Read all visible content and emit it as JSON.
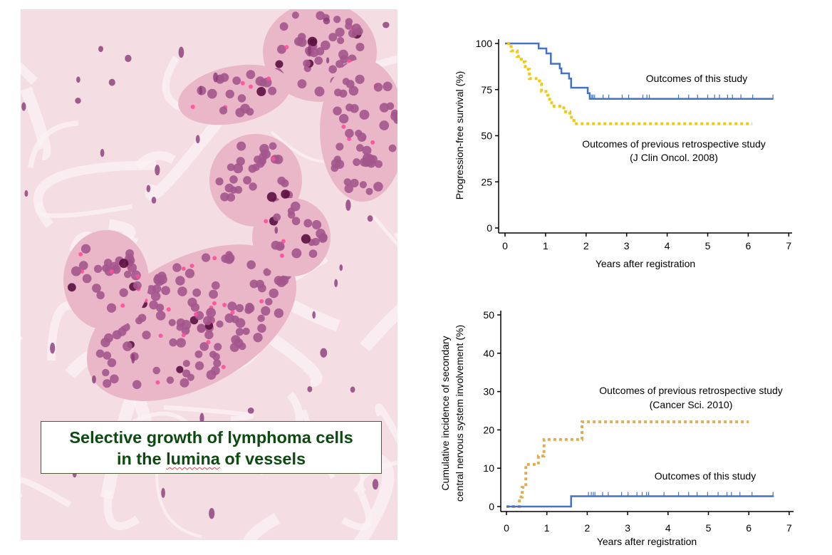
{
  "figure": {
    "caption_line1": "Selective growth of lymphoma cells",
    "caption_line2_pre": "in the ",
    "caption_line2_word": "lumina",
    "caption_line2_post": " of vessels",
    "image": "H&E histology micrograph of lymphoma cells inside vessel lumina"
  },
  "colors": {
    "this_study": "#4472C4",
    "previous_pfs": "#F2C811",
    "previous_cns": "#DFAE52"
  },
  "chart_data": [
    {
      "type": "line",
      "subtype": "kaplan-meier",
      "xlabel": "Years after registration",
      "ylabel": "Progression-free survival (%)",
      "xlim": [
        0,
        7
      ],
      "ylim": [
        0,
        100
      ],
      "xticks": [
        0,
        1,
        2,
        3,
        4,
        5,
        6,
        7
      ],
      "yticks": [
        0,
        25,
        50,
        75,
        100
      ],
      "series": [
        {
          "name": "Outcomes of this study",
          "style": "solid",
          "color": "#4472C4",
          "steps": [
            [
              0,
              100
            ],
            [
              0.83,
              97.3
            ],
            [
              1.02,
              94.6
            ],
            [
              1.13,
              89
            ],
            [
              1.35,
              86.5
            ],
            [
              1.39,
              83.8
            ],
            [
              1.58,
              81
            ],
            [
              1.63,
              76
            ],
            [
              2.04,
              73
            ],
            [
              2.09,
              70
            ],
            [
              6.62,
              70
            ]
          ],
          "censored": [
            2.14,
            2.17,
            2.21,
            2.42,
            2.56,
            2.89,
            3.05,
            3.4,
            3.5,
            3.56,
            4.28,
            4.53,
            4.75,
            5.0,
            5.17,
            5.29,
            5.49,
            5.61,
            5.82,
            6.11,
            6.61
          ]
        },
        {
          "name": "Outcomes of previous retrospective study",
          "note": "(J Clin Oncol. 2008)",
          "style": "dotted",
          "color": "#F2C811",
          "steps": [
            [
              0.05,
              100
            ],
            [
              0.15,
              96
            ],
            [
              0.3,
              93
            ],
            [
              0.4,
              90
            ],
            [
              0.5,
              86
            ],
            [
              0.6,
              81
            ],
            [
              0.85,
              78
            ],
            [
              0.9,
              74
            ],
            [
              1.05,
              72
            ],
            [
              1.1,
              69
            ],
            [
              1.15,
              66
            ],
            [
              1.45,
              63
            ],
            [
              1.6,
              60
            ],
            [
              1.7,
              56.5
            ],
            [
              6.1,
              56.5
            ]
          ],
          "censored": []
        }
      ]
    },
    {
      "type": "line",
      "subtype": "cumulative-incidence",
      "xlabel": "Years after registration",
      "ylabel_line1": "Cumulative incidence of secondary",
      "ylabel_line2": "central nervous system involvement (%)",
      "xlim": [
        0,
        7
      ],
      "ylim": [
        0,
        50
      ],
      "xticks": [
        0,
        1,
        2,
        3,
        4,
        5,
        6,
        7
      ],
      "yticks": [
        0,
        10,
        20,
        30,
        40,
        50
      ],
      "series": [
        {
          "name": "Outcomes of previous retrospective study",
          "note": "(Cancer Sci. 2010)",
          "style": "dotted",
          "color": "#DFAE52",
          "steps": [
            [
              0,
              0
            ],
            [
              0.32,
              2.5
            ],
            [
              0.39,
              5
            ],
            [
              0.48,
              11
            ],
            [
              0.79,
              13.2
            ],
            [
              0.93,
              17.5
            ],
            [
              1.87,
              22.1
            ],
            [
              6.0,
              22.1
            ]
          ],
          "censored": []
        },
        {
          "name": "Outcomes of this study",
          "style": "solid",
          "color": "#4472C4",
          "steps": [
            [
              0,
              0
            ],
            [
              1.6,
              2.7
            ],
            [
              6.62,
              2.7
            ]
          ],
          "censored": [
            2.03,
            2.1,
            2.15,
            2.19,
            2.38,
            2.52,
            2.85,
            3.01,
            3.23,
            3.36,
            3.47,
            3.52,
            3.9,
            4.26,
            4.51,
            4.72,
            4.98,
            5.24,
            5.46,
            5.57,
            5.78,
            6.08,
            6.6
          ]
        }
      ]
    }
  ]
}
